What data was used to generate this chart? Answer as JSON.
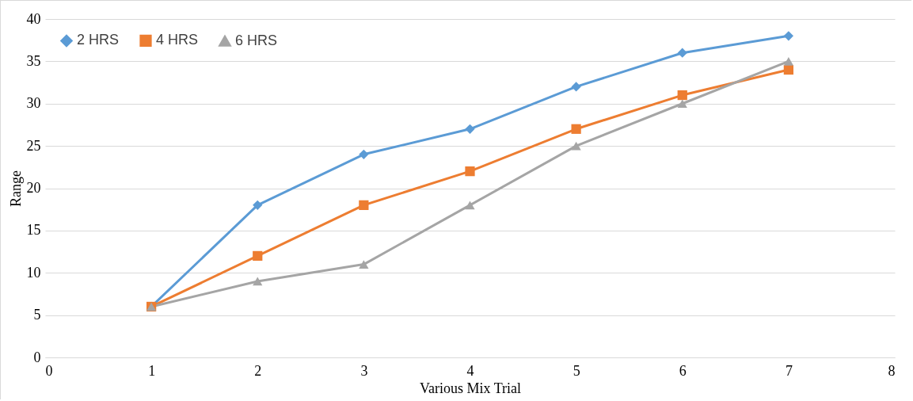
{
  "chart_data": {
    "type": "line",
    "xlabel": "Various Mix Trial",
    "ylabel": "Range",
    "x": [
      1,
      2,
      3,
      4,
      5,
      6,
      7
    ],
    "series": [
      {
        "name": "2 HRS",
        "color": "#5b9bd5",
        "marker": "diamond",
        "values": [
          6,
          18,
          24,
          27,
          32,
          36,
          38
        ]
      },
      {
        "name": "4 HRS",
        "color": "#ed7d31",
        "marker": "square",
        "values": [
          6,
          12,
          18,
          22,
          27,
          31,
          34
        ]
      },
      {
        "name": "6 HRS",
        "color": "#a5a5a5",
        "marker": "triangle",
        "values": [
          6,
          9,
          11,
          18,
          25,
          30,
          35
        ]
      }
    ],
    "xlim": [
      0,
      8
    ],
    "xticks": [
      0,
      1,
      2,
      3,
      4,
      5,
      6,
      7,
      8
    ],
    "ylim": [
      0,
      40
    ],
    "yticks": [
      0,
      5,
      10,
      15,
      20,
      25,
      30,
      35,
      40
    ],
    "grid": "y",
    "legend": "top left"
  }
}
